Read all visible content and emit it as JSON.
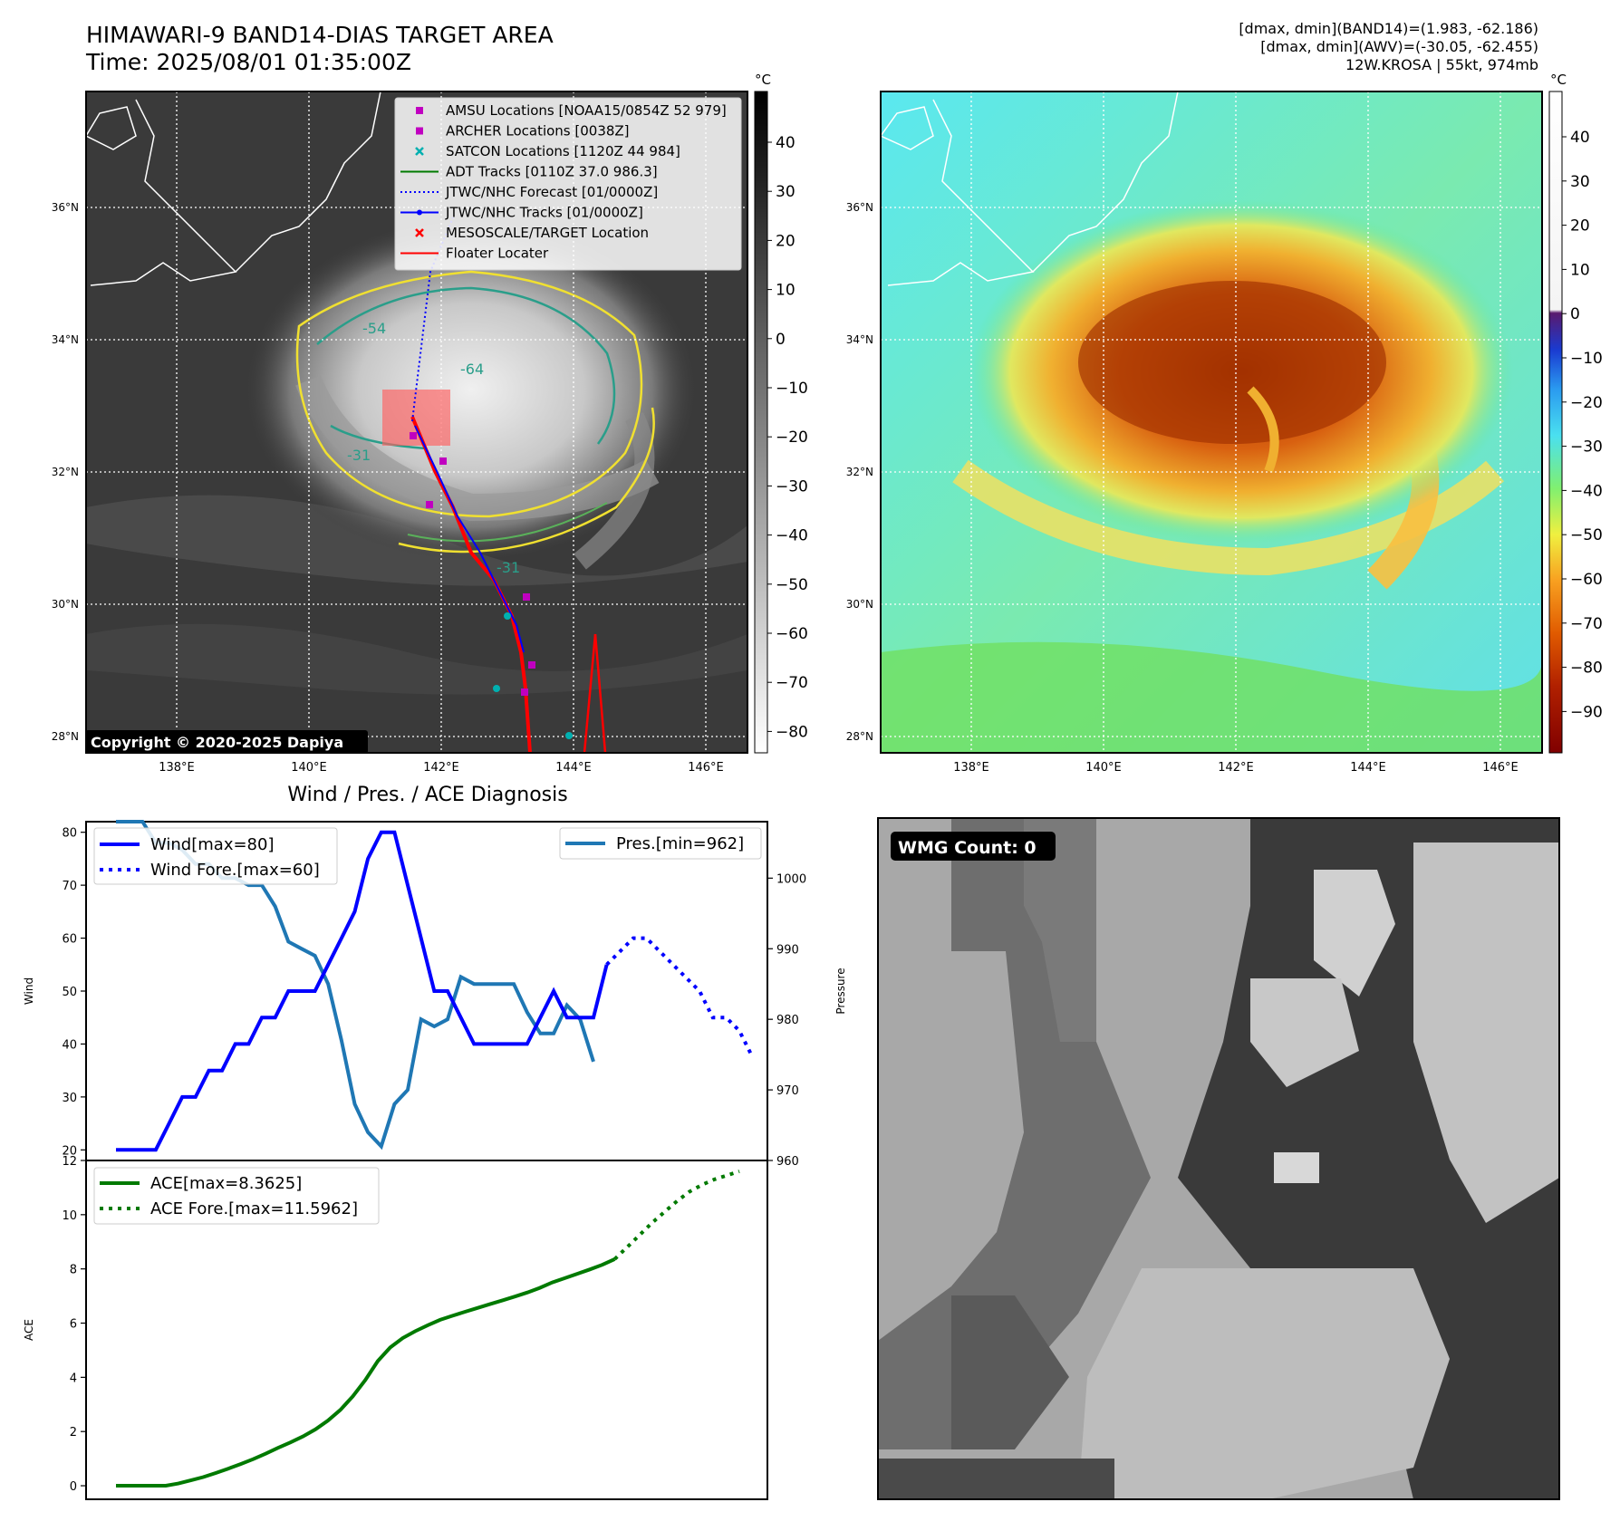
{
  "header": {
    "title_line1": "HIMAWARI-9 BAND14-DIAS TARGET AREA",
    "title_line2": "Time: 2025/08/01 01:35:00Z",
    "info_line1": "[dmax, dmin](BAND14)=(1.983, -62.186)",
    "info_line2": "[dmax, dmin](AWV)=(-30.05, -62.455)",
    "info_line3": "12W.KROSA | 55kt, 974mb"
  },
  "map_axes": {
    "lat_labels": [
      "36°N",
      "34°N",
      "32°N",
      "30°N",
      "28°N"
    ],
    "lon_labels": [
      "138°E",
      "140°E",
      "142°E",
      "144°E",
      "146°E"
    ],
    "unit": "°C"
  },
  "ir_colorbar": {
    "ticks": [
      "40",
      "30",
      "20",
      "10",
      "0",
      "−10",
      "−20",
      "−30",
      "−40",
      "−50",
      "−60",
      "−70",
      "−80"
    ]
  },
  "wv_colorbar": {
    "ticks": [
      "40",
      "30",
      "20",
      "10",
      "0",
      "−10",
      "−20",
      "−30",
      "−40",
      "−50",
      "−60",
      "−70",
      "−80",
      "−90"
    ]
  },
  "legend": {
    "items": [
      {
        "label": "AMSU Locations [NOAA15/0854Z 52 979]",
        "color": "#c000c0",
        "marker": "square"
      },
      {
        "label": "ARCHER Locations [0038Z]",
        "color": "#c000c0",
        "marker": "square"
      },
      {
        "label": "SATCON Locations [1120Z 44 984]",
        "color": "#00b0b0",
        "marker": "x"
      },
      {
        "label": "ADT Tracks [0110Z 37.0 986.3]",
        "color": "#007a00",
        "marker": "line"
      },
      {
        "label": "JTWC/NHC Forecast [01/0000Z]",
        "color": "#0000ff",
        "marker": "dotted"
      },
      {
        "label": "JTWC/NHC Tracks [01/0000Z]",
        "color": "#0000ff",
        "marker": "line-dot"
      },
      {
        "label": "MESOSCALE/TARGET Location",
        "color": "#ff0000",
        "marker": "x"
      },
      {
        "label": "Floater Locater",
        "color": "#ff0000",
        "marker": "line"
      }
    ]
  },
  "contour_labels": {
    "a": "-54",
    "b": "-64",
    "c": "-31",
    "d": "-31"
  },
  "copyright": "Copyright © 2020-2025 Dapiya",
  "wmg": {
    "label": "WMG Count: 0"
  },
  "chart_data": [
    {
      "type": "line",
      "title": "Wind / Pres. / ACE Diagnosis",
      "ylabel": "Wind",
      "ylim": [
        18,
        82
      ],
      "yticks": [
        20,
        30,
        40,
        50,
        60,
        70,
        80
      ],
      "series": [
        {
          "name": "Wind[max=80]",
          "color": "#0000ff",
          "style": "solid",
          "values": [
            20,
            20,
            20,
            20,
            25,
            30,
            30,
            35,
            35,
            40,
            40,
            45,
            45,
            50,
            50,
            50,
            55,
            60,
            65,
            75,
            80,
            80,
            70,
            60,
            50,
            50,
            45,
            40,
            40,
            40,
            40,
            40,
            45,
            50,
            45,
            45,
            45,
            55
          ]
        },
        {
          "name": "Wind Fore.[max=60]",
          "color": "#0000ff",
          "style": "dotted",
          "values": [
            55,
            57.5,
            60,
            60,
            57.5,
            55,
            52.5,
            50,
            45,
            45,
            42.5,
            37.5
          ]
        }
      ],
      "right_axis": {
        "ylabel": "Pressure",
        "ylim": [
          960,
          1008
        ],
        "yticks": [
          960,
          970,
          980,
          990,
          1000
        ],
        "series": [
          {
            "name": "Pres.[min=962]",
            "color": "#1f77b4",
            "style": "solid",
            "values": [
              1008,
              1008,
              1008,
              1005,
              1005,
              1004,
              1002,
              1002,
              1000,
              1000,
              999,
              999,
              996,
              991,
              990,
              989,
              985,
              977,
              968,
              964,
              962,
              968,
              970,
              980,
              979,
              980,
              986,
              985,
              985,
              985,
              985,
              981,
              978,
              978,
              982,
              980,
              974
            ]
          }
        ]
      }
    },
    {
      "type": "line",
      "ylabel": "ACE",
      "ylim": [
        -0.5,
        12
      ],
      "yticks": [
        0,
        2,
        4,
        6,
        8,
        10,
        12
      ],
      "series": [
        {
          "name": "ACE[max=8.3625]",
          "color": "#007a00",
          "style": "solid",
          "values": [
            0,
            0,
            0,
            0,
            0,
            0.08,
            0.2,
            0.32,
            0.47,
            0.63,
            0.8,
            0.98,
            1.18,
            1.4,
            1.6,
            1.82,
            2.08,
            2.4,
            2.8,
            3.3,
            3.9,
            4.6,
            5.1,
            5.45,
            5.7,
            5.92,
            6.12,
            6.27,
            6.42,
            6.56,
            6.7,
            6.84,
            6.98,
            7.13,
            7.3,
            7.5,
            7.66,
            7.82,
            7.98,
            8.15,
            8.36
          ]
        },
        {
          "name": "ACE Fore.[max=11.5962]",
          "color": "#007a00",
          "style": "dotted",
          "values": [
            8.36,
            8.8,
            9.25,
            9.7,
            10.1,
            10.5,
            10.85,
            11.1,
            11.3,
            11.45,
            11.6
          ]
        }
      ]
    }
  ]
}
